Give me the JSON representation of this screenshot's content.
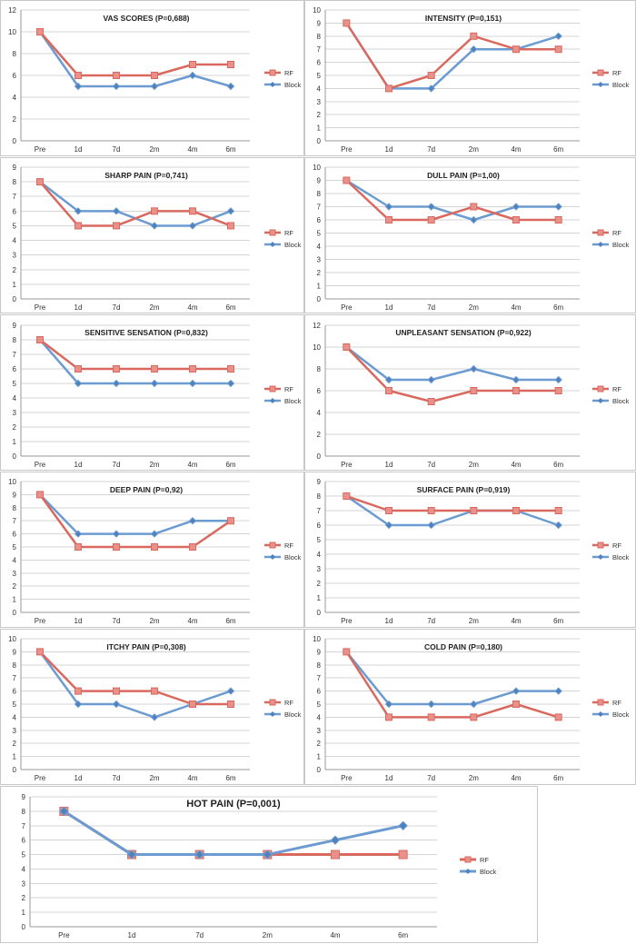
{
  "colors": {
    "rf_line": "#d9695f",
    "rf_marker": "#e8908a",
    "block_line": "#6b9bd1",
    "block_marker": "#4f81bd"
  },
  "legend": [
    "RF",
    "Block"
  ],
  "chart_data": [
    {
      "type": "line",
      "title": "VAS SCORES (P=0,688)",
      "categories": [
        "Pre",
        "1d",
        "7d",
        "2m",
        "4m",
        "6m"
      ],
      "yticks": [
        0,
        2,
        4,
        6,
        8,
        10,
        12
      ],
      "ylim": [
        0,
        12
      ],
      "series": [
        {
          "name": "RF",
          "values": [
            10,
            6,
            6,
            6,
            7,
            7
          ]
        },
        {
          "name": "Block",
          "values": [
            10,
            5,
            5,
            5,
            6,
            5
          ]
        }
      ]
    },
    {
      "type": "line",
      "title": "INTENSITY (P=0,151)",
      "categories": [
        "Pre",
        "1d",
        "7d",
        "2m",
        "4m",
        "6m"
      ],
      "yticks": [
        0,
        1,
        2,
        3,
        4,
        5,
        6,
        7,
        8,
        9,
        10
      ],
      "ylim": [
        0,
        10
      ],
      "series": [
        {
          "name": "RF",
          "values": [
            9,
            4,
            5,
            8,
            7,
            7
          ]
        },
        {
          "name": "Block",
          "values": [
            9,
            4,
            4,
            7,
            7,
            8
          ]
        }
      ]
    },
    {
      "type": "line",
      "title": "SHARP PAIN (P=0,741)",
      "categories": [
        "Pre",
        "1d",
        "7d",
        "2m",
        "4m",
        "6m"
      ],
      "yticks": [
        0,
        1,
        2,
        3,
        4,
        5,
        6,
        7,
        8,
        9
      ],
      "ylim": [
        0,
        9
      ],
      "series": [
        {
          "name": "RF",
          "values": [
            8,
            5,
            5,
            6,
            6,
            5
          ]
        },
        {
          "name": "Block",
          "values": [
            8,
            6,
            6,
            5,
            5,
            6
          ]
        }
      ]
    },
    {
      "type": "line",
      "title": "DULL PAIN (P=1,00)",
      "categories": [
        "Pre",
        "1d",
        "7d",
        "2m",
        "4m",
        "6m"
      ],
      "yticks": [
        0,
        1,
        2,
        3,
        4,
        5,
        6,
        7,
        8,
        9,
        10
      ],
      "ylim": [
        0,
        10
      ],
      "series": [
        {
          "name": "RF",
          "values": [
            9,
            6,
            6,
            7,
            6,
            6
          ]
        },
        {
          "name": "Block",
          "values": [
            9,
            7,
            7,
            6,
            7,
            7
          ]
        }
      ]
    },
    {
      "type": "line",
      "title": "SENSITIVE SENSATION (P=0,832)",
      "categories": [
        "Pre",
        "1d",
        "7d",
        "2m",
        "4m",
        "6m"
      ],
      "yticks": [
        0,
        1,
        2,
        3,
        4,
        5,
        6,
        7,
        8,
        9
      ],
      "ylim": [
        0,
        9
      ],
      "series": [
        {
          "name": "RF",
          "values": [
            8,
            6,
            6,
            6,
            6,
            6
          ]
        },
        {
          "name": "Block",
          "values": [
            8,
            5,
            5,
            5,
            5,
            5
          ]
        }
      ]
    },
    {
      "type": "line",
      "title": "UNPLEASANT SENSATION (P=0,922)",
      "categories": [
        "Pre",
        "1d",
        "7d",
        "2m",
        "4m",
        "6m"
      ],
      "yticks": [
        0,
        2,
        4,
        6,
        8,
        10,
        12
      ],
      "ylim": [
        0,
        12
      ],
      "series": [
        {
          "name": "RF",
          "values": [
            10,
            6,
            5,
            6,
            6,
            6
          ]
        },
        {
          "name": "Block",
          "values": [
            10,
            7,
            7,
            8,
            7,
            7
          ]
        }
      ]
    },
    {
      "type": "line",
      "title": "DEEP PAIN (P=0,92)",
      "categories": [
        "Pre",
        "1d",
        "7d",
        "2m",
        "4m",
        "6m"
      ],
      "yticks": [
        0,
        1,
        2,
        3,
        4,
        5,
        6,
        7,
        8,
        9,
        10
      ],
      "ylim": [
        0,
        10
      ],
      "series": [
        {
          "name": "RF",
          "values": [
            9,
            5,
            5,
            5,
            5,
            7
          ]
        },
        {
          "name": "Block",
          "values": [
            9,
            6,
            6,
            6,
            7,
            7
          ]
        }
      ]
    },
    {
      "type": "line",
      "title": "SURFACE PAIN (P=0,919)",
      "categories": [
        "Pre",
        "1d",
        "7d",
        "2m",
        "4m",
        "6m"
      ],
      "yticks": [
        0,
        1,
        2,
        3,
        4,
        5,
        6,
        7,
        8,
        9
      ],
      "ylim": [
        0,
        9
      ],
      "series": [
        {
          "name": "RF",
          "values": [
            8,
            7,
            7,
            7,
            7,
            7
          ]
        },
        {
          "name": "Block",
          "values": [
            8,
            6,
            6,
            7,
            7,
            6
          ]
        }
      ]
    },
    {
      "type": "line",
      "title": "ITCHY PAIN (P=0,308)",
      "categories": [
        "Pre",
        "1d",
        "7d",
        "2m",
        "4m",
        "6m"
      ],
      "yticks": [
        0,
        1,
        2,
        3,
        4,
        5,
        6,
        7,
        8,
        9,
        10
      ],
      "ylim": [
        0,
        10
      ],
      "series": [
        {
          "name": "RF",
          "values": [
            9,
            6,
            6,
            6,
            5,
            5
          ]
        },
        {
          "name": "Block",
          "values": [
            9,
            5,
            5,
            4,
            5,
            6
          ]
        }
      ]
    },
    {
      "type": "line",
      "title": "COLD PAIN (P=0,180)",
      "categories": [
        "Pre",
        "1d",
        "7d",
        "2m",
        "4m",
        "6m"
      ],
      "yticks": [
        0,
        1,
        2,
        3,
        4,
        5,
        6,
        7,
        8,
        9,
        10
      ],
      "ylim": [
        0,
        10
      ],
      "series": [
        {
          "name": "RF",
          "values": [
            9,
            4,
            4,
            4,
            5,
            4
          ]
        },
        {
          "name": "Block",
          "values": [
            9,
            5,
            5,
            5,
            6,
            6
          ]
        }
      ]
    },
    {
      "type": "line",
      "title": "HOT PAIN (P=0,001)",
      "categories": [
        "Pre",
        "1d",
        "7d",
        "2m",
        "4m",
        "6m"
      ],
      "yticks": [
        0,
        1,
        2,
        3,
        4,
        5,
        6,
        7,
        8,
        9
      ],
      "ylim": [
        0,
        9
      ],
      "series": [
        {
          "name": "RF",
          "values": [
            8,
            5,
            5,
            5,
            5,
            5
          ]
        },
        {
          "name": "Block",
          "values": [
            8,
            5,
            5,
            5,
            6,
            7
          ]
        }
      ]
    }
  ]
}
